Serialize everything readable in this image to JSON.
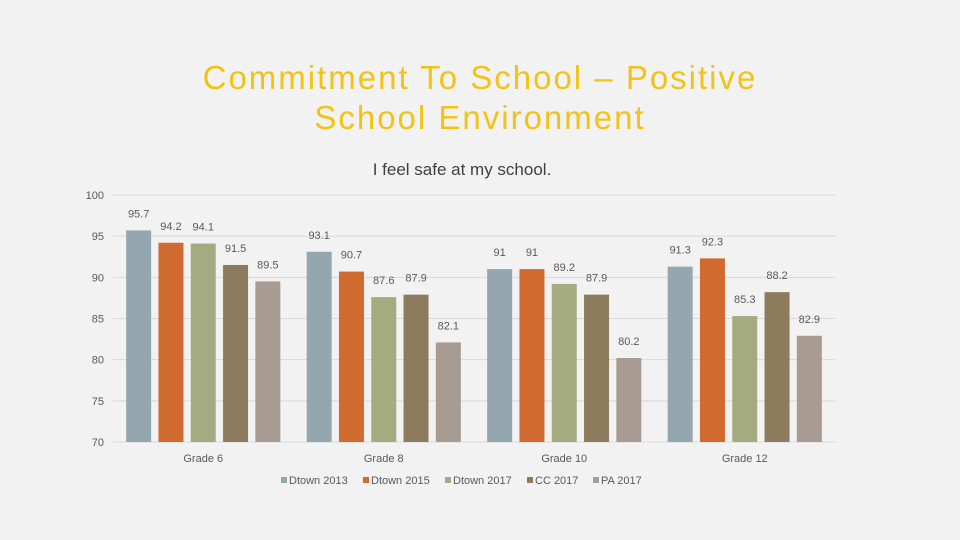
{
  "slide": {
    "title_line1": "Commitment To School – Positive",
    "title_line2": "School Environment"
  },
  "chart_data": {
    "type": "bar",
    "title": "I feel safe at my school.",
    "categories": [
      "Grade 6",
      "Grade 8",
      "Grade 10",
      "Grade 12"
    ],
    "series": [
      {
        "name": "Dtown 2013",
        "color": "#94a7b0",
        "values": [
          95.7,
          93.1,
          91,
          91.3
        ]
      },
      {
        "name": "Dtown 2015",
        "color": "#d16a2f",
        "values": [
          94.2,
          90.7,
          91,
          92.3
        ]
      },
      {
        "name": "Dtown 2017",
        "color": "#a5ab81",
        "values": [
          94.1,
          87.6,
          89.2,
          85.3
        ]
      },
      {
        "name": "CC 2017",
        "color": "#8c7b5d",
        "values": [
          91.5,
          87.9,
          87.9,
          88.2
        ]
      },
      {
        "name": "PA 2017",
        "color": "#a89c92",
        "values": [
          89.5,
          82.1,
          80.2,
          82.9
        ]
      }
    ],
    "ylim": [
      70,
      100
    ],
    "yticks": [
      70,
      75,
      80,
      85,
      90,
      95,
      100
    ],
    "grid": true,
    "legend": "bottom"
  }
}
